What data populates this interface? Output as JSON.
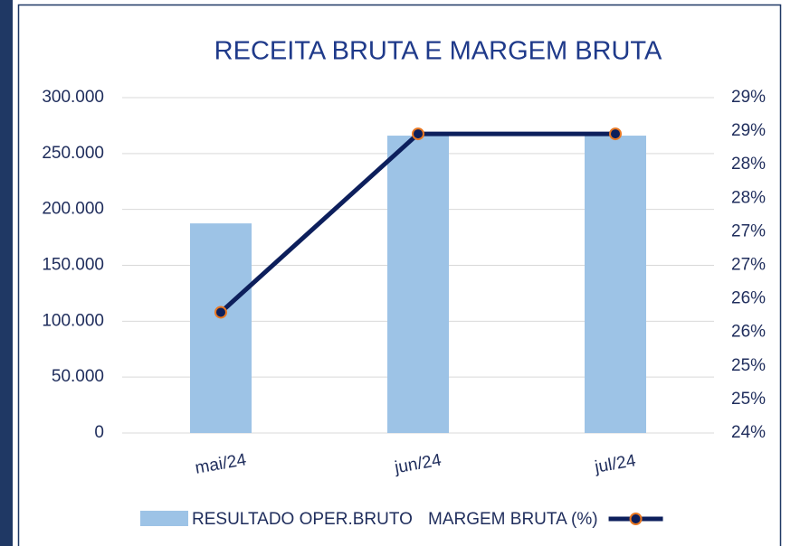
{
  "chart_data": {
    "type": "bar-line",
    "title": "RECEITA BRUTA E MARGEM BRUTA",
    "categories": [
      "mai/24",
      "jun/24",
      "jul/24"
    ],
    "series": [
      {
        "name": "RESULTADO OPER.BRUTO",
        "type": "bar",
        "color": "#9dc3e6",
        "values": [
          187500,
          266000,
          266000
        ]
      },
      {
        "name": "MARGEM BRUTA (%)",
        "type": "line",
        "axis": "y2",
        "color": "#0d1f5c",
        "marker_edge": "#e87722",
        "values": [
          25.8,
          28.46,
          28.46
        ]
      }
    ],
    "ylim": [
      0,
      300000
    ],
    "yticks": [
      0,
      {
        "value": 50000,
        "label": "50.000"
      },
      {
        "value": 100000,
        "label": "100.000"
      },
      {
        "value": 150000,
        "label": "150.000"
      },
      {
        "value": 200000,
        "label": "200.000"
      },
      {
        "value": 250000,
        "label": "250.000"
      },
      {
        "value": 300000,
        "label": "300.000"
      }
    ],
    "y2lim": [
      24,
      29
    ],
    "y2ticks": [
      {
        "value": 24,
        "label": "24%"
      },
      {
        "value": 24.5,
        "label": "25%"
      },
      {
        "value": 25,
        "label": "25%"
      },
      {
        "value": 25.5,
        "label": "26%"
      },
      {
        "value": 26,
        "label": "26%"
      },
      {
        "value": 26.5,
        "label": "27%"
      },
      {
        "value": 27,
        "label": "27%"
      },
      {
        "value": 27.5,
        "label": "28%"
      },
      {
        "value": 28,
        "label": "28%"
      },
      {
        "value": 28.5,
        "label": "29%"
      },
      {
        "value": 29,
        "label": "29%"
      }
    ],
    "grid": true,
    "legend": "bottom"
  }
}
